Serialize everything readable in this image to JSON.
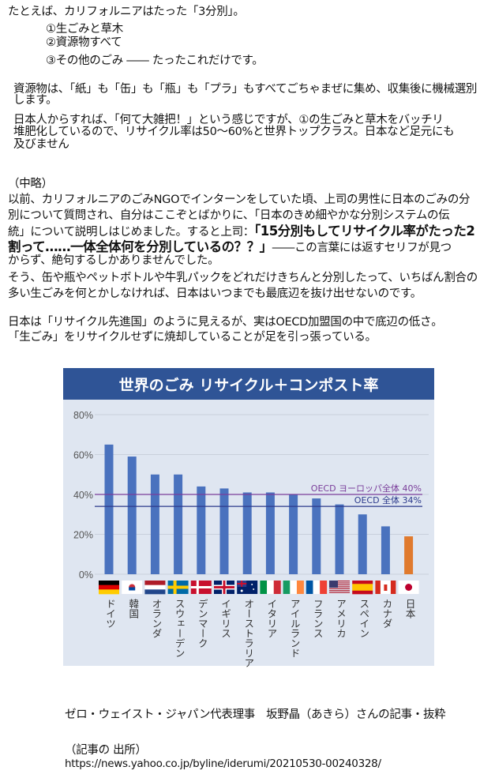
{
  "intro": {
    "line1": "たとえば、カリフォルニアはたった「3分別」。",
    "items": [
      "①生ごみと草木",
      "②資源物すべて",
      "③その他のごみ ―― たったこれだけです。"
    ]
  },
  "para1": [
    "資源物は、「紙」も「缶」も「瓶」も「プラ」もすべてごちゃまぜに集め、収集後に機械選別",
    "します。"
  ],
  "para2": [
    "日本人からすれば、「何て大雑把！」という感じですが、①の生ごみと草木をバッチリ",
    "堆肥化しているので、リサイクル率は50～60%と世界トップクラス。日本など足元にも",
    "及びません"
  ],
  "para3": {
    "omitted": "（中略）",
    "l1": "以前、カリフォルニアのごみNGOでインターンをしていた頃、上司の男性に日本のごみの分",
    "l2": "別について質問され、自分はここぞとばかりに、「日本のきめ細やかな分別システムの伝",
    "l3_plain": "統」について説明しはじめました。すると上司：",
    "l3_bold": "「15分別もしてリサイクル率がたった2",
    "l4_bold": "割って……一体全体何を分別しているの？？」",
    "l4_plain": "――この言葉には返すセリフが見つ",
    "l5": "からず、絶句するしかありませんでした。",
    "l6": "そう、缶や瓶やペットボトルや牛乳パックをどれだけきちんと分別したって、いちばん割合の",
    "l7": "多い生ごみを何とかしなければ、日本はいつまでも最底辺を抜け出せないのです。"
  },
  "para4": [
    "日本は「リサイクル先進国」のように見えるが、実はOECD加盟国の中で底辺の低さ。",
    "「生ごみ」をリサイクルせずに焼却していることが足を引っ張っている。"
  ],
  "footer": {
    "credit": "ゼロ・ウェイスト・ジャパン代表理事　坂野晶（あきら）さんの記事・抜粋",
    "source_label": "（記事の 出所）",
    "url": "https://news.yahoo.co.jp/byline/iderumi/20210530-00240328/"
  },
  "chart_data": {
    "type": "bar",
    "title": "世界のごみ リサイクル＋コンポスト率",
    "categories": [
      "ドイツ",
      "韓国",
      "オランダ",
      "スウェーデン",
      "デンマーク",
      "イギリス",
      "オーストラリア",
      "イタリア",
      "アイルランド",
      "フランス",
      "アメリカ",
      "スペイン",
      "カナダ",
      "日本"
    ],
    "values": [
      65,
      59,
      50,
      50,
      44,
      43,
      41,
      41,
      40,
      38,
      35,
      30,
      24,
      19
    ],
    "ylim": [
      0,
      80
    ],
    "yticks": [
      0,
      20,
      40,
      60,
      80
    ],
    "ytick_labels": [
      "0%",
      "20%",
      "40%",
      "60%",
      "80%"
    ],
    "reference_lines": [
      {
        "label": "OECD ヨーロッパ全体 40%",
        "value": 40,
        "color": "#7a3d9a"
      },
      {
        "label": "OECD 全体 34%",
        "value": 34,
        "color": "#2c3a8c"
      }
    ],
    "bar_color": "#4a72be",
    "highlight_color": "#e07a2e",
    "highlight_index": 13,
    "title_bg": "#2f5496",
    "plot_bg": "#dfe6f1",
    "grid": true
  }
}
